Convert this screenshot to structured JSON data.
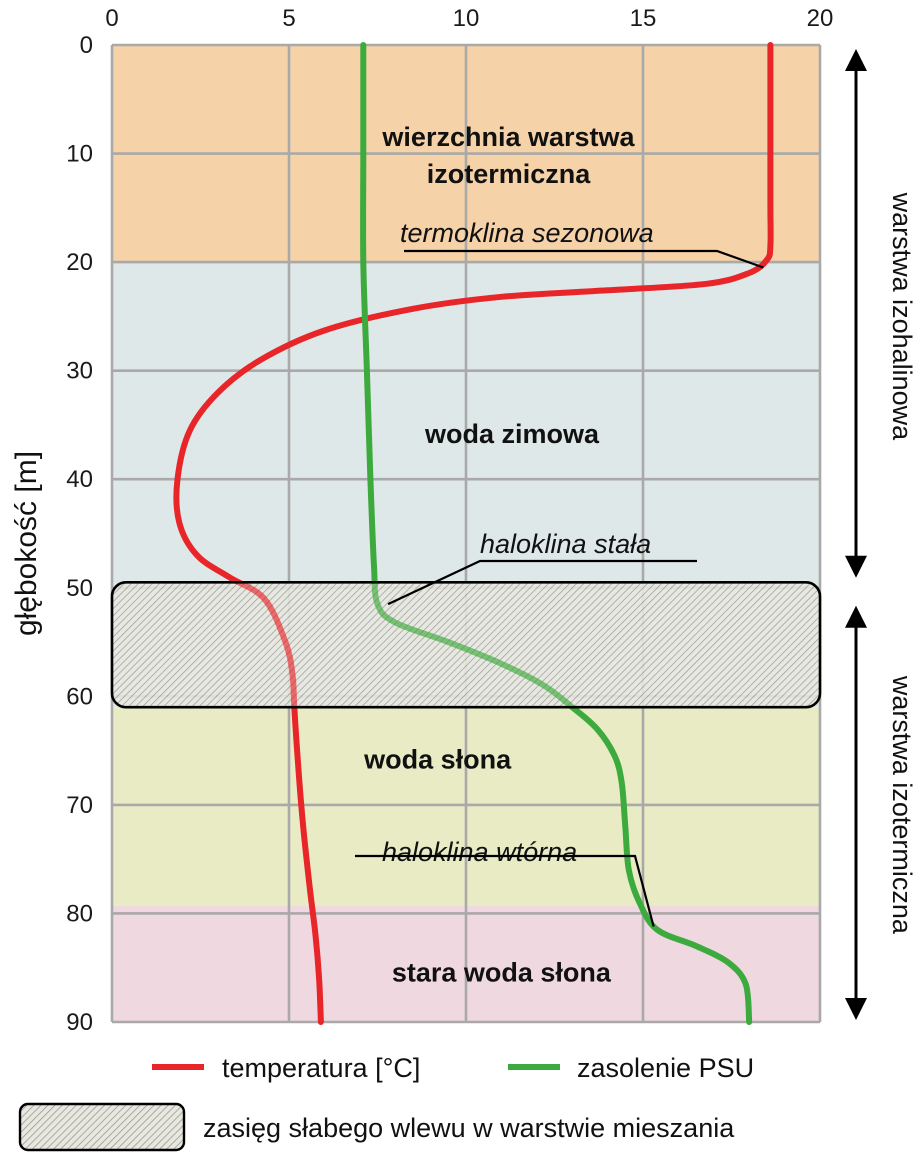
{
  "chart_data": {
    "type": "line",
    "title": "",
    "xlabel": "",
    "ylabel": "głębokość [m]",
    "xlim": [
      0,
      20
    ],
    "ylim": [
      0,
      90
    ],
    "y_inverted": true,
    "x_axis_position": "top",
    "x_ticks": [
      "0",
      "5",
      "10",
      "15",
      "20"
    ],
    "y_ticks": [
      "0",
      "10",
      "20",
      "30",
      "40",
      "50",
      "60",
      "70",
      "80",
      "90"
    ],
    "grid": true,
    "series": [
      {
        "name": "temperatura [°C]",
        "color": "#e8262a",
        "points": [
          [
            18.6,
            0
          ],
          [
            18.6,
            5
          ],
          [
            18.6,
            10
          ],
          [
            18.6,
            15
          ],
          [
            18.6,
            18.5
          ],
          [
            18.5,
            19.8
          ],
          [
            18.0,
            21.0
          ],
          [
            16.8,
            22.0
          ],
          [
            14.0,
            22.6
          ],
          [
            11.0,
            23.2
          ],
          [
            8.5,
            24.3
          ],
          [
            6.0,
            26.3
          ],
          [
            4.2,
            29.0
          ],
          [
            3.0,
            32.0
          ],
          [
            2.2,
            35.5
          ],
          [
            1.85,
            40.0
          ],
          [
            1.9,
            44.0
          ],
          [
            2.4,
            47.0
          ],
          [
            3.3,
            49.0
          ],
          [
            4.3,
            51.0
          ],
          [
            4.9,
            55.0
          ],
          [
            5.1,
            58.0
          ],
          [
            5.15,
            61.0
          ],
          [
            5.25,
            66.0
          ],
          [
            5.4,
            72.0
          ],
          [
            5.6,
            78.0
          ],
          [
            5.75,
            82.0
          ],
          [
            5.85,
            86.0
          ],
          [
            5.9,
            90.0
          ]
        ]
      },
      {
        "name": "zasolenie PSU",
        "color": "#3daa3d",
        "points": [
          [
            7.1,
            0
          ],
          [
            7.1,
            10
          ],
          [
            7.1,
            20
          ],
          [
            7.2,
            30
          ],
          [
            7.3,
            40
          ],
          [
            7.4,
            48
          ],
          [
            7.5,
            51.5
          ],
          [
            8.0,
            53.2
          ],
          [
            9.5,
            55.0
          ],
          [
            11.0,
            57.0
          ],
          [
            12.2,
            59.0
          ],
          [
            13.0,
            61.0
          ],
          [
            13.7,
            63.0
          ],
          [
            14.2,
            65.5
          ],
          [
            14.4,
            68.0
          ],
          [
            14.5,
            72.0
          ],
          [
            14.6,
            76.0
          ],
          [
            14.9,
            79.0
          ],
          [
            15.4,
            81.5
          ],
          [
            16.5,
            83.0
          ],
          [
            17.4,
            84.5
          ],
          [
            17.9,
            86.5
          ],
          [
            18.0,
            90.0
          ]
        ]
      }
    ],
    "zones": [
      {
        "name": "wierzchnia warstwa izotermiczna",
        "from": 0,
        "to": 20,
        "color": "#f6d2a8",
        "label_lines": [
          "wierzchnia warstwa",
          "izotermiczna"
        ],
        "label_x": 11.2,
        "label_y": 10.3
      },
      {
        "name": "woda zimowa",
        "from": 20,
        "to": 61,
        "color": "#dfe8e8",
        "label_lines": [
          "woda zimowa"
        ],
        "label_x": 11.3,
        "label_y": 36
      },
      {
        "name": "woda słona",
        "from": 61,
        "to": 79.3,
        "color": "#e8ebc4",
        "label_lines": [
          "woda słona"
        ],
        "label_x": 9.2,
        "label_y": 66
      },
      {
        "name": "stara woda słona",
        "from": 79.3,
        "to": 90,
        "color": "#f0d8e0",
        "label_lines": [
          "stara woda słona"
        ],
        "label_x": 11.0,
        "label_y": 85.6
      }
    ],
    "hatched_band": {
      "from": 49.5,
      "to": 61,
      "label": "zasięg słabego wlewu w warstwie mieszania"
    },
    "annotations": [
      {
        "text": "termoklina sezonowa",
        "target_x": 18.4,
        "target_y": 20.5
      },
      {
        "text": "haloklina stała",
        "target_x": 7.8,
        "target_y": 51.5
      },
      {
        "text": "haloklina wtórna",
        "target_x": 15.3,
        "target_y": 81.2
      }
    ],
    "side_arrows": [
      {
        "text": "warstwa izohalinowa",
        "from": 0,
        "to": 50
      },
      {
        "text": "warstwa izotermiczna",
        "from": 50,
        "to": 90
      }
    ],
    "legend_position": "bottom"
  }
}
